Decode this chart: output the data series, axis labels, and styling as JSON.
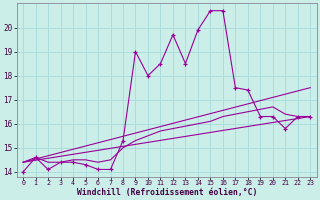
{
  "background_color": "#cceee8",
  "grid_color": "#aadddd",
  "line_color": "#990099",
  "xlim": [
    -0.5,
    23.5
  ],
  "ylim": [
    13.8,
    21.0
  ],
  "yticks": [
    14,
    15,
    16,
    17,
    18,
    19,
    20
  ],
  "xticks": [
    0,
    1,
    2,
    3,
    4,
    5,
    6,
    7,
    8,
    9,
    10,
    11,
    12,
    13,
    14,
    15,
    16,
    17,
    18,
    19,
    20,
    21,
    22,
    23
  ],
  "xlabel": "Windchill (Refroidissement éolien,°C)",
  "series1_x": [
    0,
    1,
    2,
    3,
    4,
    5,
    6,
    7,
    8,
    9,
    10,
    11,
    12,
    13,
    14,
    15,
    16,
    17,
    18,
    19,
    20,
    21,
    22,
    23
  ],
  "series1_y": [
    14.0,
    14.6,
    14.1,
    14.4,
    14.4,
    14.3,
    14.1,
    14.1,
    15.3,
    19.0,
    18.0,
    18.5,
    19.7,
    18.5,
    19.9,
    20.7,
    20.7,
    17.5,
    17.4,
    16.3,
    16.3,
    15.8,
    16.3,
    16.3
  ],
  "series2_x": [
    0,
    1,
    2,
    3,
    4,
    5,
    6,
    7,
    8,
    9,
    10,
    11,
    12,
    13,
    14,
    15,
    16,
    17,
    18,
    19,
    20,
    21,
    22,
    23
  ],
  "series2_y": [
    14.4,
    14.6,
    14.4,
    14.4,
    14.5,
    14.5,
    14.4,
    14.5,
    15.0,
    15.3,
    15.5,
    15.7,
    15.8,
    15.9,
    16.0,
    16.1,
    16.3,
    16.4,
    16.5,
    16.6,
    16.7,
    16.4,
    16.3,
    16.3
  ],
  "series3_x": [
    0,
    23
  ],
  "series3_y": [
    14.4,
    17.5
  ],
  "series4_x": [
    0,
    23
  ],
  "series4_y": [
    14.4,
    16.3
  ]
}
